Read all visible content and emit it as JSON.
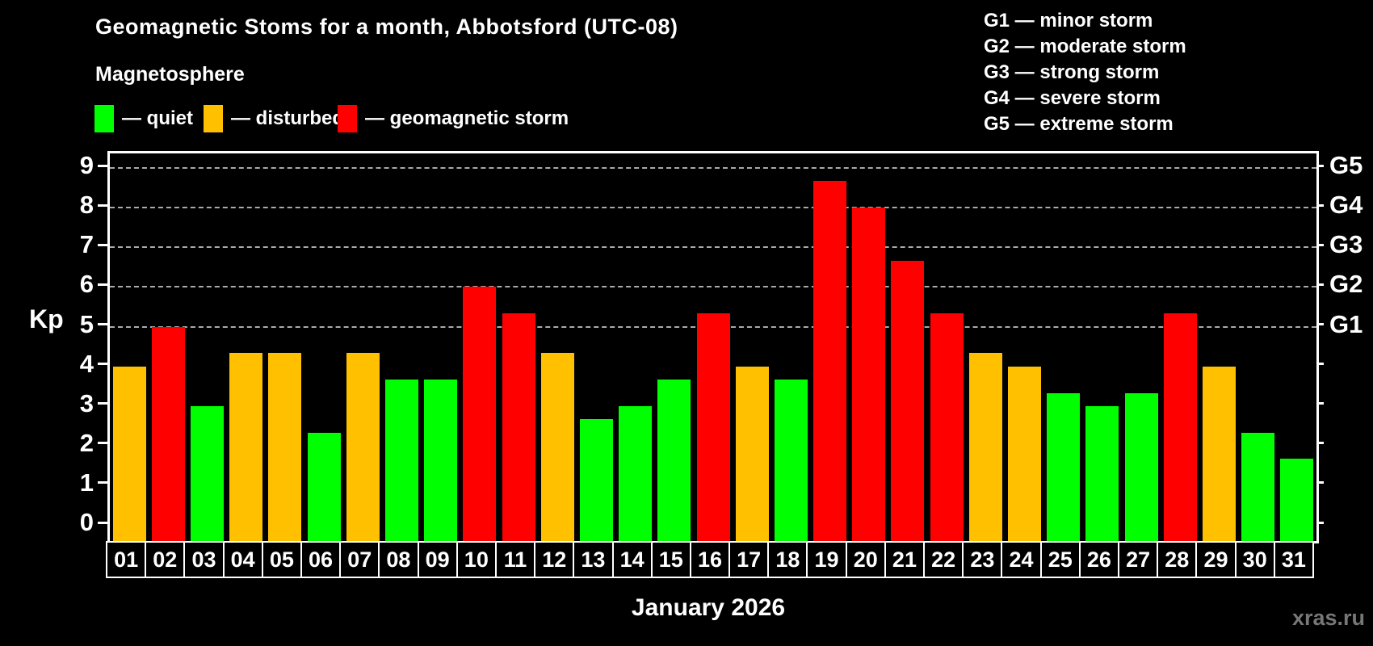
{
  "header": {
    "title": "Geomagnetic Stoms for a month, Abbotsford (UTC-08)",
    "subtitle": "Magnetosphere"
  },
  "legend": {
    "items": [
      {
        "status": "quiet",
        "label": "— quiet",
        "color": "#00FF00"
      },
      {
        "status": "disturbed",
        "label": "— disturbed",
        "color": "#FFC000"
      },
      {
        "status": "storm",
        "label": "— geomagnetic storm",
        "color": "#FF0000"
      }
    ]
  },
  "g_scale_legend": {
    "items": [
      "G1 — minor storm",
      "G2 — moderate storm",
      "G3 — strong storm",
      "G4 — severe storm",
      "G5 — extreme storm"
    ]
  },
  "chart_data": {
    "type": "bar",
    "title": "Geomagnetic Stoms for a month, Abbotsford (UTC-08)",
    "subtitle": "Magnetosphere",
    "xlabel": "January 2026",
    "ylabel": "Kp",
    "ylim": [
      0,
      9
    ],
    "grid": "horizontal dashed lines at Kp 5,6,7,8,9 only",
    "legend_position": "top",
    "categories": [
      "01",
      "02",
      "03",
      "04",
      "05",
      "06",
      "07",
      "08",
      "09",
      "10",
      "11",
      "12",
      "13",
      "14",
      "15",
      "16",
      "17",
      "18",
      "19",
      "20",
      "21",
      "22",
      "23",
      "24",
      "25",
      "26",
      "27",
      "28",
      "29",
      "30",
      "31"
    ],
    "values": [
      4.0,
      5.0,
      3.0,
      4.33,
      4.33,
      2.33,
      4.33,
      3.67,
      3.67,
      6.0,
      5.33,
      4.33,
      2.67,
      3.0,
      3.67,
      5.33,
      4.0,
      3.67,
      8.67,
      8.0,
      6.67,
      5.33,
      4.33,
      4.0,
      3.33,
      3.0,
      3.33,
      5.33,
      4.0,
      2.33,
      1.67
    ],
    "statuses": [
      "disturbed",
      "storm",
      "quiet",
      "disturbed",
      "disturbed",
      "quiet",
      "disturbed",
      "quiet",
      "quiet",
      "storm",
      "storm",
      "disturbed",
      "quiet",
      "quiet",
      "quiet",
      "storm",
      "disturbed",
      "quiet",
      "storm",
      "storm",
      "storm",
      "storm",
      "disturbed",
      "disturbed",
      "quiet",
      "quiet",
      "quiet",
      "storm",
      "disturbed",
      "quiet",
      "quiet"
    ],
    "colors_by_status": {
      "quiet": "#00FF00",
      "disturbed": "#FFC000",
      "storm": "#FF0000"
    },
    "left_axis_tick_labels": [
      "0",
      "1",
      "2",
      "3",
      "4",
      "5",
      "6",
      "7",
      "8",
      "9"
    ],
    "right_axis_labels": [
      {
        "kp": 5,
        "label": "G1"
      },
      {
        "kp": 6,
        "label": "G2"
      },
      {
        "kp": 7,
        "label": "G3"
      },
      {
        "kp": 8,
        "label": "G4"
      },
      {
        "kp": 9,
        "label": "G5"
      }
    ]
  },
  "footer": {
    "month_label": "January 2026",
    "watermark": "xras.ru"
  }
}
